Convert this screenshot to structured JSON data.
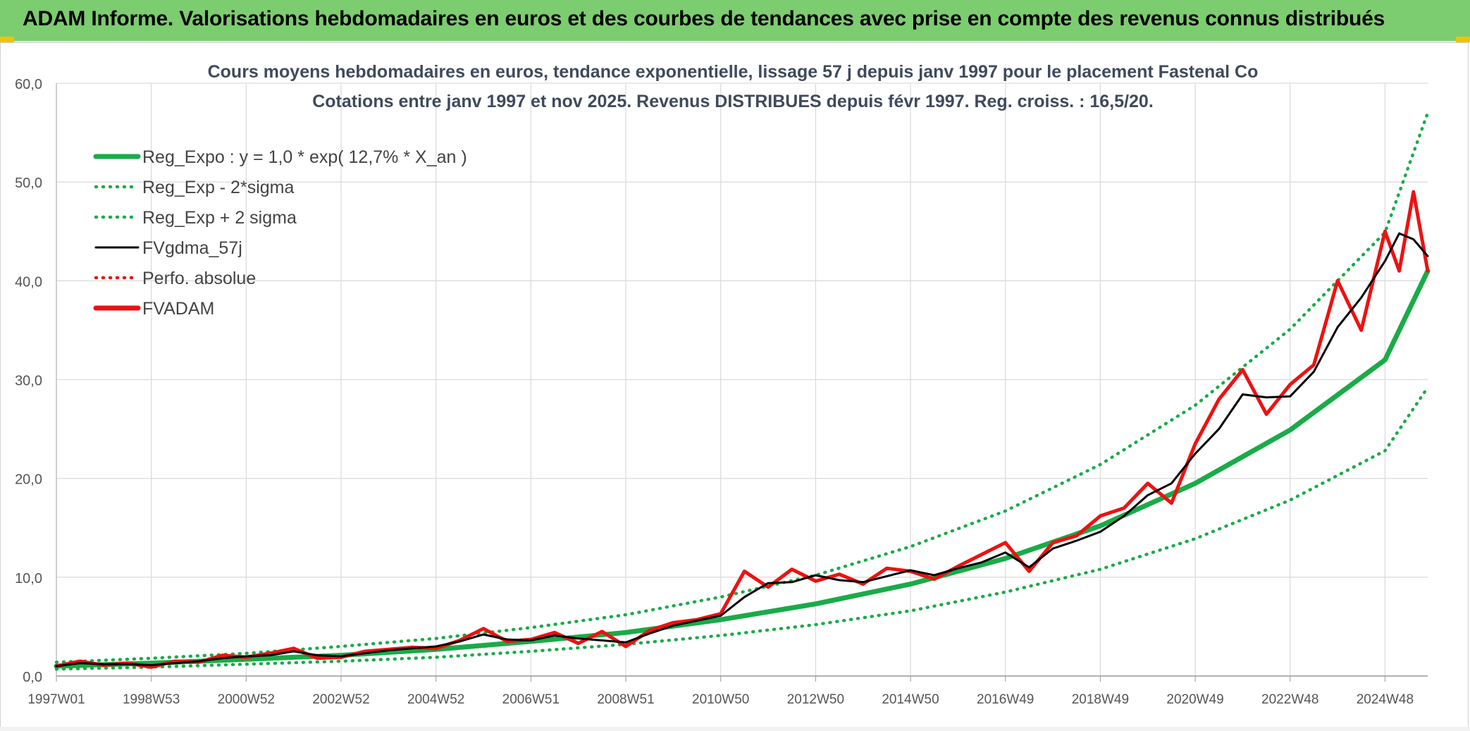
{
  "header": {
    "title": "ADAM Informe. Valorisations hebdomadaires en euros et des courbes de tendances avec prise en compte des revenus connus distribués"
  },
  "colors": {
    "banner": "#7ccd6f",
    "trend": "#1aab48",
    "smoothed": "#000000",
    "price": "#ee1111",
    "absolute": "#ee1111",
    "grid": "#dcdcdc",
    "axis_text": "#555555"
  },
  "chart_data": {
    "type": "line",
    "title": "Cours moyens hebdomadaires en euros, tendance exponentielle, lissage 57 j depuis janv 1997 pour le placement Fastenal Co",
    "subtitle": "Cotations entre janv 1997 et nov 2025. Revenus DISTRIBUES depuis févr 1997. Reg. croiss. : 16,5/20.",
    "xlabel": "",
    "ylabel": "",
    "x_range": [
      1997.0,
      2025.9
    ],
    "ylim": [
      0,
      60
    ],
    "y_ticks": [
      0,
      10,
      20,
      30,
      40,
      50,
      60
    ],
    "y_tick_labels": [
      "0,0",
      "10,0",
      "20,0",
      "30,0",
      "40,0",
      "50,0",
      "60,0"
    ],
    "x_tick_labels": [
      "1997W01",
      "1998W53",
      "2000W52",
      "2002W52",
      "2004W52",
      "2006W51",
      "2008W51",
      "2010W50",
      "2012W50",
      "2014W50",
      "2016W49",
      "2018W49",
      "2020W49",
      "2022W48",
      "2024W48"
    ],
    "x_tick_years": [
      1997.0,
      1999.0,
      2001.0,
      2003.0,
      2005.0,
      2007.0,
      2009.0,
      2011.0,
      2013.0,
      2015.0,
      2017.0,
      2019.0,
      2021.0,
      2023.0,
      2025.0
    ],
    "legend_position": "top-left",
    "series": [
      {
        "name": "Reg_Expo : y = 1,0 * exp( 12,7% *  X_an )",
        "style": "solid-thick",
        "color": "#1aab48",
        "x": [
          1997,
          1999,
          2001,
          2003,
          2005,
          2007,
          2009,
          2011,
          2013,
          2015,
          2017,
          2019,
          2021,
          2023,
          2025,
          2025.9
        ],
        "y": [
          1.0,
          1.3,
          1.7,
          2.1,
          2.7,
          3.5,
          4.4,
          5.7,
          7.3,
          9.3,
          11.9,
          15.2,
          19.5,
          24.9,
          32.0,
          41.0
        ]
      },
      {
        "name": "Reg_Exp - 2*sigma",
        "style": "dotted",
        "color": "#1aab48",
        "x": [
          1997,
          1999,
          2001,
          2003,
          2005,
          2007,
          2009,
          2011,
          2013,
          2015,
          2017,
          2019,
          2021,
          2023,
          2025,
          2025.9
        ],
        "y": [
          0.7,
          0.9,
          1.2,
          1.5,
          1.9,
          2.5,
          3.2,
          4.1,
          5.2,
          6.6,
          8.5,
          10.8,
          13.9,
          17.8,
          22.8,
          29.2
        ]
      },
      {
        "name": "Reg_Exp + 2 sigma",
        "style": "dotted",
        "color": "#1aab48",
        "x": [
          1997,
          1999,
          2001,
          2003,
          2005,
          2007,
          2009,
          2011,
          2013,
          2015,
          2017,
          2019,
          2021,
          2023,
          2025,
          2025.9
        ],
        "y": [
          1.4,
          1.8,
          2.3,
          3.0,
          3.8,
          4.9,
          6.2,
          8.0,
          10.2,
          13.1,
          16.7,
          21.4,
          27.4,
          35.1,
          44.9,
          57.0
        ]
      },
      {
        "name": "FVgdma_57j",
        "style": "solid-thin",
        "color": "#000000",
        "x": [
          1997.0,
          1997.5,
          1998.0,
          1998.5,
          1999.0,
          1999.5,
          2000.0,
          2000.5,
          2001.0,
          2001.5,
          2002.0,
          2002.5,
          2003.0,
          2003.5,
          2004.0,
          2004.5,
          2005.0,
          2005.5,
          2006.0,
          2006.5,
          2007.0,
          2007.5,
          2008.0,
          2008.5,
          2009.0,
          2009.5,
          2010.0,
          2010.5,
          2011.0,
          2011.5,
          2012.0,
          2012.5,
          2013.0,
          2013.5,
          2014.0,
          2014.5,
          2015.0,
          2015.5,
          2016.0,
          2016.5,
          2017.0,
          2017.5,
          2018.0,
          2018.5,
          2019.0,
          2019.5,
          2020.0,
          2020.5,
          2021.0,
          2021.5,
          2022.0,
          2022.5,
          2023.0,
          2023.5,
          2024.0,
          2024.5,
          2025.0,
          2025.3,
          2025.6,
          2025.9
        ],
        "y": [
          1.0,
          1.3,
          1.2,
          1.2,
          1.1,
          1.3,
          1.5,
          1.8,
          2.0,
          2.1,
          2.5,
          2.1,
          2.0,
          2.3,
          2.6,
          2.8,
          3.0,
          3.5,
          4.2,
          3.7,
          3.6,
          4.1,
          3.8,
          3.6,
          3.4,
          4.3,
          5.1,
          5.6,
          6.1,
          8.0,
          9.4,
          9.5,
          10.2,
          9.7,
          9.5,
          10.1,
          10.7,
          10.2,
          10.9,
          11.5,
          12.5,
          11.0,
          12.9,
          13.7,
          14.6,
          16.2,
          18.3,
          19.5,
          22.5,
          25.0,
          28.5,
          28.2,
          28.3,
          30.8,
          35.3,
          38.3,
          42.0,
          44.8,
          44.2,
          42.5
        ]
      },
      {
        "name": "Perfo. absolue",
        "style": "dotted",
        "color": "#ee1111",
        "x": [],
        "y": []
      },
      {
        "name": "FVADAM",
        "style": "solid-thick",
        "color": "#ee1111",
        "x": [
          1997.0,
          1997.5,
          1998.0,
          1998.5,
          1999.0,
          1999.5,
          2000.0,
          2000.5,
          2001.0,
          2001.5,
          2002.0,
          2002.5,
          2003.0,
          2003.5,
          2004.0,
          2004.5,
          2005.0,
          2005.5,
          2006.0,
          2006.5,
          2007.0,
          2007.5,
          2008.0,
          2008.5,
          2009.0,
          2009.5,
          2010.0,
          2010.5,
          2011.0,
          2011.5,
          2012.0,
          2012.5,
          2013.0,
          2013.5,
          2014.0,
          2014.5,
          2015.0,
          2015.5,
          2016.0,
          2016.5,
          2017.0,
          2017.5,
          2018.0,
          2018.5,
          2019.0,
          2019.5,
          2020.0,
          2020.5,
          2021.0,
          2021.5,
          2022.0,
          2022.5,
          2023.0,
          2023.5,
          2024.0,
          2024.5,
          2025.0,
          2025.3,
          2025.6,
          2025.9
        ],
        "y": [
          1.0,
          1.5,
          1.1,
          1.3,
          0.9,
          1.5,
          1.4,
          2.1,
          1.9,
          2.3,
          2.8,
          1.8,
          1.9,
          2.5,
          2.7,
          2.9,
          2.8,
          3.6,
          4.8,
          3.5,
          3.7,
          4.4,
          3.3,
          4.5,
          3.0,
          4.6,
          5.4,
          5.7,
          6.3,
          10.6,
          9.0,
          10.8,
          9.6,
          10.3,
          9.3,
          10.9,
          10.6,
          9.8,
          11.1,
          12.3,
          13.5,
          10.6,
          13.5,
          14.2,
          16.2,
          17.0,
          19.5,
          17.5,
          23.5,
          28.0,
          31.0,
          26.5,
          29.5,
          31.5,
          40.0,
          35.0,
          45.0,
          41.0,
          49.0,
          41.0
        ]
      }
    ]
  }
}
